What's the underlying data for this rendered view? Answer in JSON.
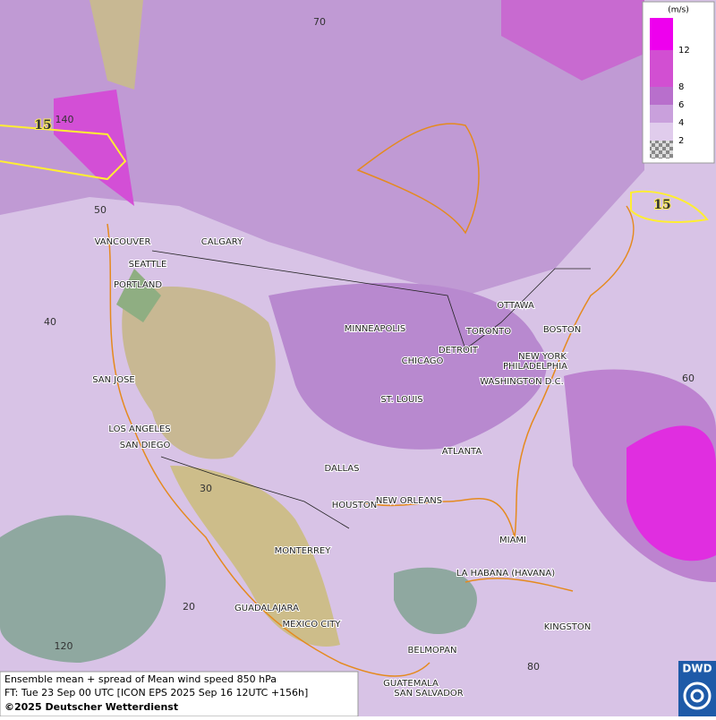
{
  "legend": {
    "unit": "(m/s)",
    "ticks": [
      12,
      8,
      6,
      4,
      2
    ]
  },
  "grid_labels": [
    "70",
    "140",
    "50",
    "40",
    "30",
    "20",
    "120",
    "60",
    "80"
  ],
  "contour_labels": [
    "15",
    "15"
  ],
  "cities": [
    "VANCOUVER",
    "CALGARY",
    "SEATTLE",
    "PORTLAND",
    "MINNEAPOLIS",
    "OTTAWA",
    "TORONTO",
    "BOSTON",
    "DETROIT",
    "NEW YORK",
    "CHICAGO",
    "PHILADELPHIA",
    "SAN JOSE",
    "WASHINGTON D.C.",
    "ST. LOUIS",
    "LOS ANGELES",
    "SAN DIEGO",
    "ATLANTA",
    "DALLAS",
    "HOUSTON",
    "NEW ORLEANS",
    "MIAMI",
    "MONTERREY",
    "LA HABANA (HAVANA)",
    "GUADALAJARA",
    "MEXICO CITY",
    "KINGSTON",
    "BELMOPAN",
    "GUATEMALA",
    "SAN SALVADOR"
  ],
  "footer": {
    "line1": "Ensemble mean + spread of Mean wind speed 850 hPa",
    "line2": "FT: Tue 23 Sep 00 UTC [ICON EPS 2025 Sep 16 12UTC +156h]",
    "line3": "©2025 Deutscher Wetterdienst"
  },
  "logo": "DWD"
}
